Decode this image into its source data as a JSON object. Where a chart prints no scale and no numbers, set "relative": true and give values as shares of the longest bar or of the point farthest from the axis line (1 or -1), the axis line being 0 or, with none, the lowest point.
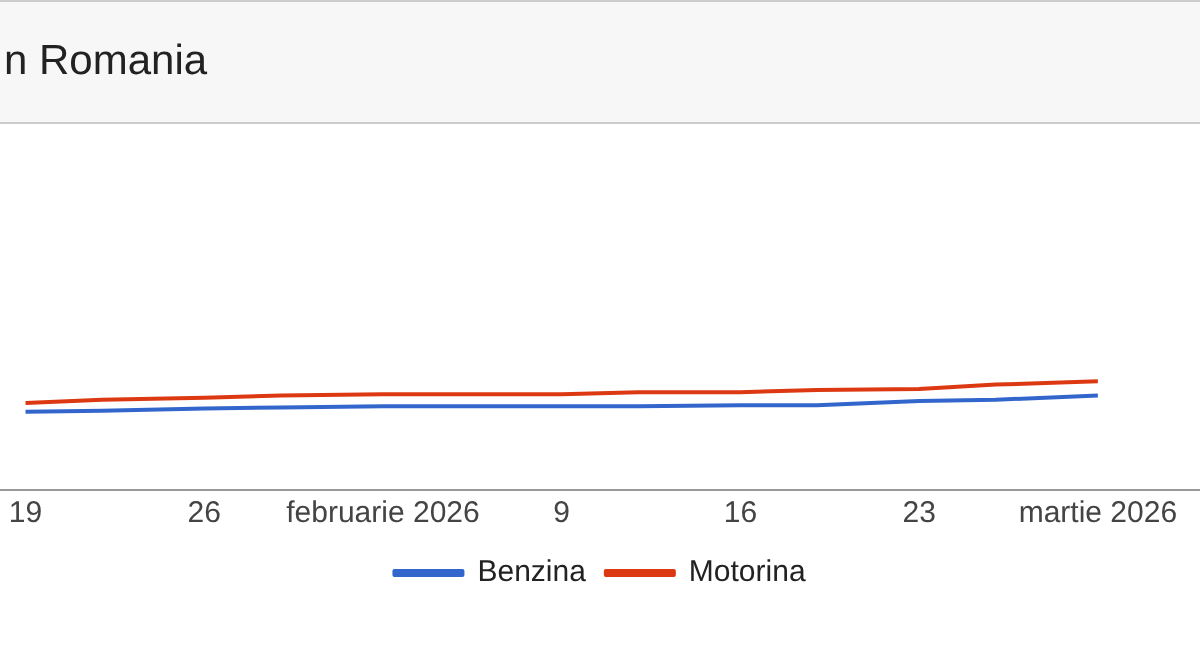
{
  "chart_data": {
    "type": "line",
    "title": "n Romania",
    "relative": true,
    "legend": "bottom",
    "x": [
      "2026-01-19",
      "2026-01-22",
      "2026-01-26",
      "2026-01-29",
      "2026-02-02",
      "2026-02-09",
      "2026-02-12",
      "2026-02-16",
      "2026-02-19",
      "2026-02-23",
      "2026-02-26",
      "2026-03-02"
    ],
    "xlim": [
      "2026-01-18",
      "2026-03-06"
    ],
    "xticks": [
      {
        "value": "2026-01-19",
        "label": "19"
      },
      {
        "value": "2026-01-26",
        "label": "26"
      },
      {
        "value": "2026-02-02",
        "label": "februarie 2026"
      },
      {
        "value": "2026-02-09",
        "label": "9"
      },
      {
        "value": "2026-02-16",
        "label": "16"
      },
      {
        "value": "2026-02-23",
        "label": "23"
      },
      {
        "value": "2026-03-02",
        "label": "martie 2026"
      }
    ],
    "series": [
      {
        "name": "Benzina",
        "color": "#3366cc",
        "values": [
          0.72,
          0.73,
          0.75,
          0.76,
          0.77,
          0.77,
          0.77,
          0.78,
          0.78,
          0.82,
          0.83,
          0.87
        ]
      },
      {
        "name": "Motorina",
        "color": "#dc3912",
        "values": [
          0.8,
          0.83,
          0.85,
          0.87,
          0.88,
          0.88,
          0.9,
          0.9,
          0.92,
          0.93,
          0.97,
          1
        ]
      }
    ]
  }
}
